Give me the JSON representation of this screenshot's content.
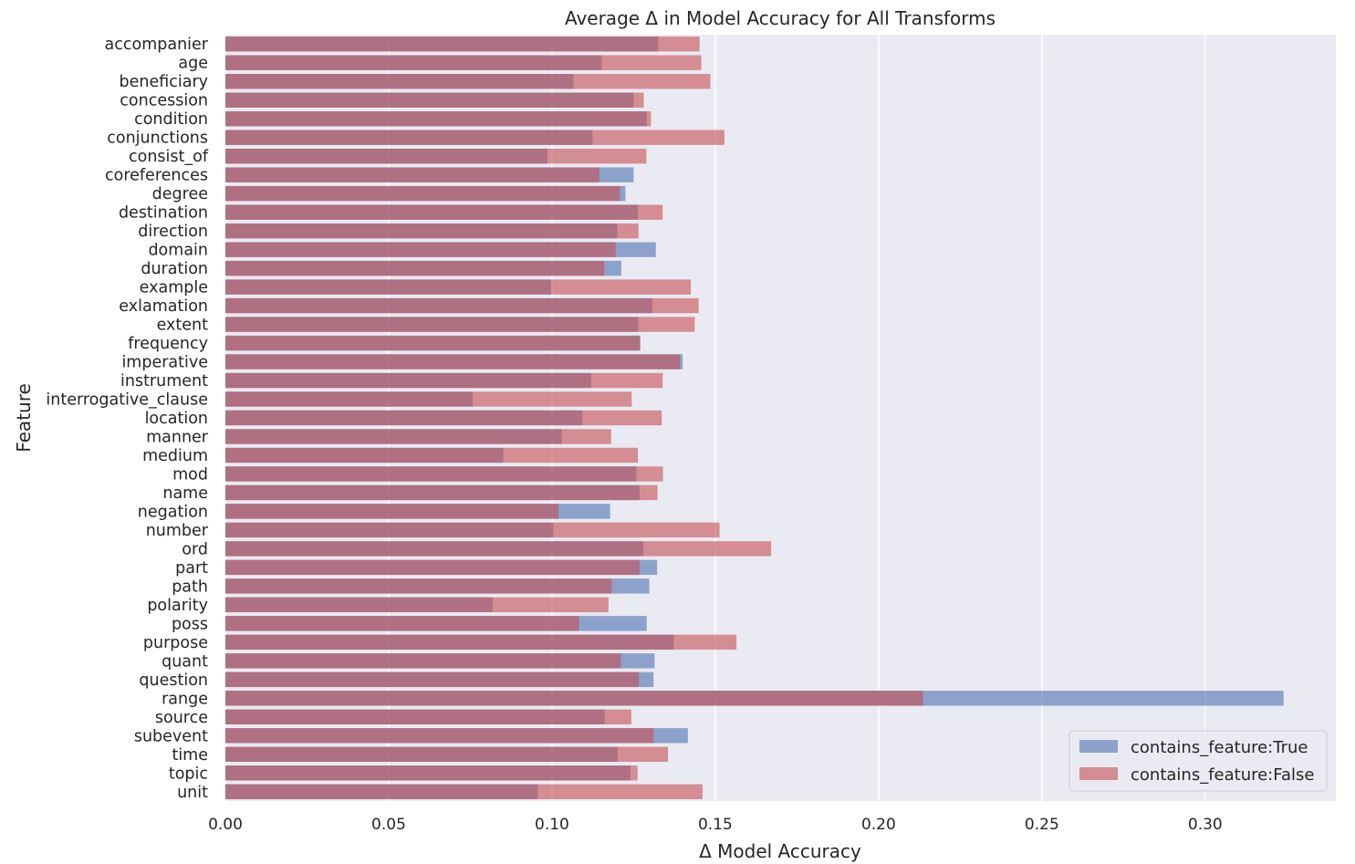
{
  "chart_data": {
    "type": "bar",
    "orientation": "horizontal",
    "title": "Average Δ in Model Accuracy for All Transforms",
    "xlabel": "Δ Model Accuracy",
    "ylabel": "Feature",
    "xlim": [
      0,
      0.34
    ],
    "xticks": [
      0.0,
      0.05,
      0.1,
      0.15,
      0.2,
      0.25,
      0.3
    ],
    "xtick_labels": [
      "0.00",
      "0.05",
      "0.10",
      "0.15",
      "0.20",
      "0.25",
      "0.30"
    ],
    "grid": true,
    "legend_position": "lower-right",
    "categories": [
      "accompanier",
      "age",
      "beneficiary",
      "concession",
      "condition",
      "conjunctions",
      "consist_of",
      "coreferences",
      "degree",
      "destination",
      "direction",
      "domain",
      "duration",
      "example",
      "exlamation",
      "extent",
      "frequency",
      "imperative",
      "instrument",
      "interrogative_clause",
      "location",
      "manner",
      "medium",
      "mod",
      "name",
      "negation",
      "number",
      "ord",
      "part",
      "path",
      "polarity",
      "poss",
      "purpose",
      "quant",
      "question",
      "range",
      "source",
      "subevent",
      "time",
      "topic",
      "unit"
    ],
    "series": [
      {
        "name": "contains_feature:True",
        "color": "#4c72b0",
        "values": [
          0.1325,
          0.1152,
          0.1066,
          0.125,
          0.129,
          0.1124,
          0.0986,
          0.125,
          0.1225,
          0.1263,
          0.12,
          0.1318,
          0.1212,
          0.0997,
          0.1307,
          0.1264,
          0.127,
          0.14,
          0.112,
          0.0757,
          0.1093,
          0.103,
          0.0851,
          0.1258,
          0.1268,
          0.1178,
          0.1004,
          0.128,
          0.1322,
          0.1298,
          0.0818,
          0.129,
          0.1373,
          0.1314,
          0.1311,
          0.324,
          0.1161,
          0.1416,
          0.1201,
          0.124,
          0.0956
        ]
      },
      {
        "name": "contains_feature:False",
        "color": "#c44e52",
        "values": [
          0.1452,
          0.1457,
          0.1485,
          0.1281,
          0.1303,
          0.1528,
          0.1289,
          0.1145,
          0.1208,
          0.1339,
          0.1265,
          0.1195,
          0.116,
          0.1425,
          0.1449,
          0.1437,
          0.127,
          0.1392,
          0.1339,
          0.1244,
          0.1336,
          0.1181,
          0.1263,
          0.134,
          0.1323,
          0.102,
          0.1513,
          0.1671,
          0.1268,
          0.1183,
          0.1173,
          0.1083,
          0.1565,
          0.1211,
          0.1266,
          0.2136,
          0.1243,
          0.1311,
          0.1355,
          0.1262,
          0.1461
        ]
      }
    ]
  }
}
